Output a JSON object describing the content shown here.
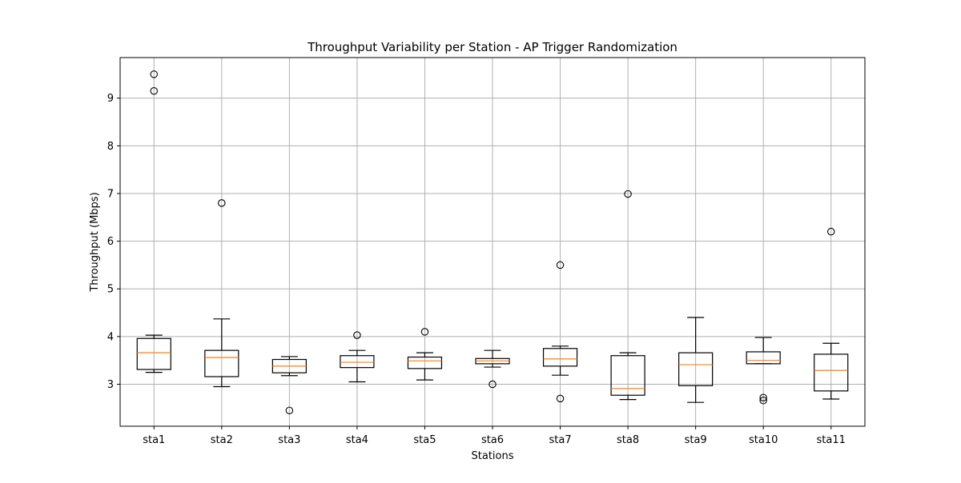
{
  "chart_data": {
    "type": "box",
    "title": "Throughput Variability per Station - AP Trigger Randomization",
    "xlabel": "Stations",
    "ylabel": "Throughput (Mbps)",
    "ylim": [
      2.12,
      9.85
    ],
    "yticks": [
      3,
      4,
      5,
      6,
      7,
      8,
      9
    ],
    "grid": true,
    "colors": {
      "box": "#000000",
      "median": "#ff7f0e",
      "grid": "#b0b0b0"
    },
    "categories": [
      "sta1",
      "sta2",
      "sta3",
      "sta4",
      "sta5",
      "sta6",
      "sta7",
      "sta8",
      "sta9",
      "sta10",
      "sta11"
    ],
    "boxes": [
      {
        "whisker_low": 3.25,
        "q1": 3.31,
        "median": 3.66,
        "q3": 3.96,
        "whisker_high": 4.03,
        "outliers": [
          9.15,
          9.5
        ]
      },
      {
        "whisker_low": 2.95,
        "q1": 3.16,
        "median": 3.56,
        "q3": 3.71,
        "whisker_high": 4.37,
        "outliers": [
          6.8
        ]
      },
      {
        "whisker_low": 3.18,
        "q1": 3.24,
        "median": 3.38,
        "q3": 3.52,
        "whisker_high": 3.58,
        "outliers": [
          2.45
        ]
      },
      {
        "whisker_low": 3.05,
        "q1": 3.35,
        "median": 3.46,
        "q3": 3.6,
        "whisker_high": 3.71,
        "outliers": [
          4.03
        ]
      },
      {
        "whisker_low": 3.09,
        "q1": 3.33,
        "median": 3.49,
        "q3": 3.57,
        "whisker_high": 3.66,
        "outliers": [
          4.1
        ]
      },
      {
        "whisker_low": 3.36,
        "q1": 3.43,
        "median": 3.49,
        "q3": 3.54,
        "whisker_high": 3.71,
        "outliers": [
          3.0
        ]
      },
      {
        "whisker_low": 3.19,
        "q1": 3.38,
        "median": 3.53,
        "q3": 3.75,
        "whisker_high": 3.8,
        "outliers": [
          5.5,
          2.7
        ]
      },
      {
        "whisker_low": 2.68,
        "q1": 2.77,
        "median": 2.91,
        "q3": 3.6,
        "whisker_high": 3.66,
        "outliers": [
          6.99
        ]
      },
      {
        "whisker_low": 2.62,
        "q1": 2.97,
        "median": 3.41,
        "q3": 3.66,
        "whisker_high": 4.4,
        "outliers": []
      },
      {
        "whisker_low": 3.43,
        "q1": 3.43,
        "median": 3.5,
        "q3": 3.68,
        "whisker_high": 3.98,
        "outliers": [
          2.72,
          2.66
        ]
      },
      {
        "whisker_low": 2.69,
        "q1": 2.86,
        "median": 3.29,
        "q3": 3.63,
        "whisker_high": 3.86,
        "outliers": [
          6.2
        ]
      }
    ]
  }
}
